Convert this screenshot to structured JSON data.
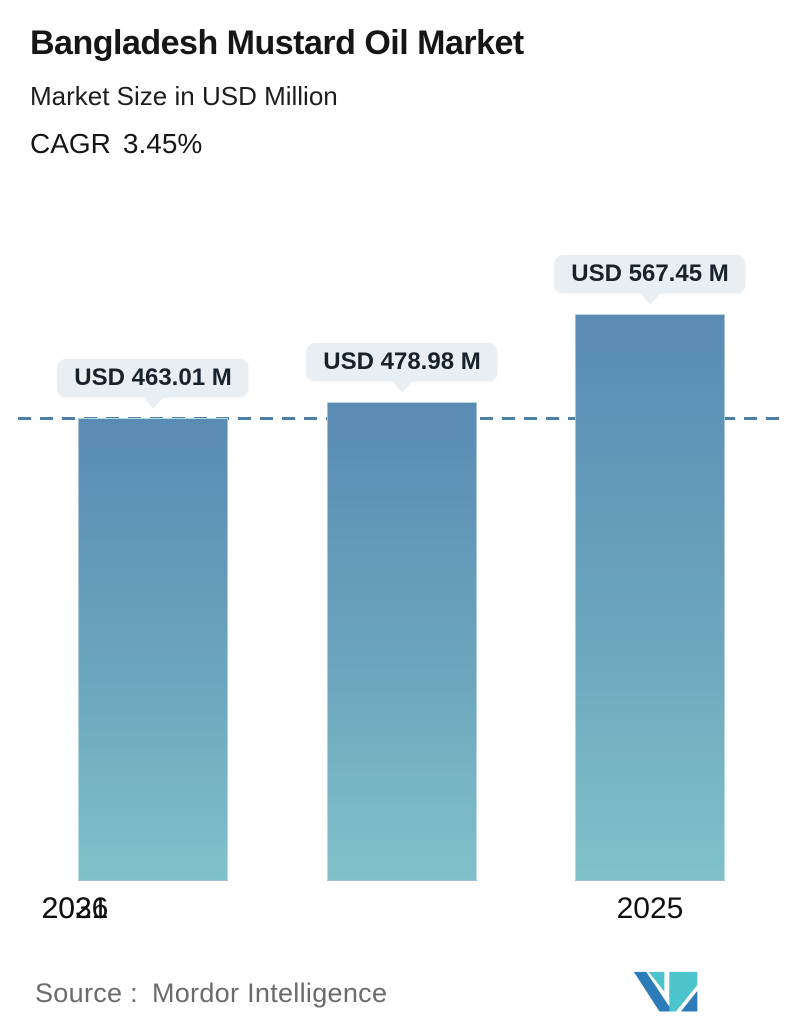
{
  "header": {
    "title": "Bangladesh Mustard Oil Market",
    "subtitle": "Market Size in USD Million",
    "cagr_label": "CAGR",
    "cagr_value": "3.45%"
  },
  "chart_data": {
    "type": "bar",
    "title": "Bangladesh Mustard Oil Market",
    "subtitle": "Market Size in USD Million",
    "cagr": "3.45%",
    "categories": [
      "2025",
      "2026",
      "2031"
    ],
    "values": [
      463.01,
      478.98,
      567.45
    ],
    "value_labels": [
      "USD 463.01 M",
      "USD 478.98 M",
      "USD 567.45 M"
    ],
    "unit": "USD Million",
    "ylim": [
      0,
      620
    ],
    "grid": false,
    "legend": false,
    "reference_line": {
      "value": 463.01,
      "style": "dashed",
      "color": "#4d80a6"
    },
    "bar_gradient_top": "#5a8bb4",
    "bar_gradient_bottom": "#80c2c9"
  },
  "footer": {
    "source_label": "Source :",
    "source_value": "Mordor Intelligence",
    "logo_name": "mordor-intelligence-logo"
  },
  "colors": {
    "accent_blue": "#5d95c8",
    "tooltip_bg": "#e8eef1",
    "tooltip_text": "#17222c",
    "dashed_line": "#4d80a6",
    "source_text": "#6b6b6b",
    "logo_blue": "#2b7cb8",
    "logo_teal": "#4cc4cb",
    "background": "#ffffff"
  }
}
